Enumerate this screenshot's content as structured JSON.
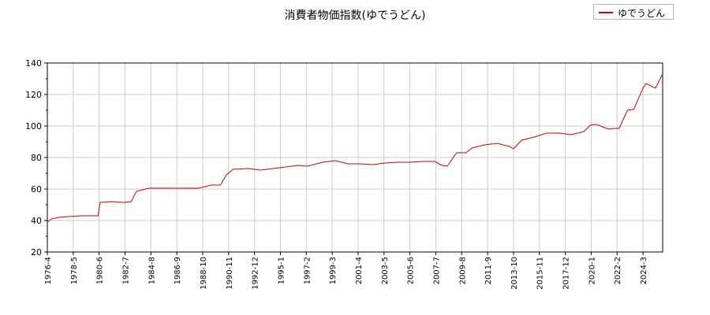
{
  "chart_data": {
    "type": "line",
    "title": "消費者物価指数(ゆでうどん)",
    "xlabel": "",
    "ylabel": "",
    "ylim": [
      20,
      140
    ],
    "yticks": [
      20,
      40,
      60,
      80,
      100,
      120,
      140
    ],
    "xlim": [
      "1976-04",
      "2025-10"
    ],
    "xticks": [
      "1976-4",
      "1978-5",
      "1980-6",
      "1982-7",
      "1984-8",
      "1986-9",
      "1988-10",
      "1990-11",
      "1992-12",
      "1995-1",
      "1997-2",
      "1999-3",
      "2001-4",
      "2003-5",
      "2005-6",
      "2007-7",
      "2009-8",
      "2011-9",
      "2013-10",
      "2015-11",
      "2017-12",
      "2020-1",
      "2022-2",
      "2024-3"
    ],
    "grid": true,
    "legend_position": "top-right",
    "series": [
      {
        "name": "ゆでうどん",
        "color": "#cc0000",
        "x": [
          "1976-04",
          "1976-08",
          "1977-03",
          "1978-01",
          "1979-01",
          "1980-05",
          "1980-07",
          "1981-06",
          "1982-06",
          "1983-01",
          "1983-06",
          "1984-06",
          "1985-06",
          "1986-06",
          "1987-06",
          "1988-06",
          "1989-06",
          "1990-03",
          "1990-09",
          "1991-03",
          "1992-06",
          "1993-06",
          "1994-06",
          "1995-06",
          "1996-06",
          "1997-03",
          "1998-06",
          "1999-06",
          "2000-06",
          "2001-06",
          "2002-06",
          "2003-06",
          "2004-06",
          "2005-06",
          "2006-06",
          "2007-06",
          "2008-01",
          "2008-06",
          "2009-03",
          "2009-12",
          "2010-06",
          "2011-06",
          "2012-06",
          "2013-06",
          "2013-10",
          "2014-06",
          "2015-06",
          "2016-06",
          "2017-06",
          "2018-06",
          "2019-06",
          "2019-12",
          "2020-06",
          "2021-06",
          "2021-12",
          "2022-04",
          "2022-12",
          "2023-06",
          "2024-03",
          "2024-06",
          "2025-03",
          "2025-10"
        ],
        "values": [
          39,
          41,
          42,
          42.5,
          43,
          43,
          51.5,
          52,
          51.5,
          52,
          58.5,
          60.5,
          60.5,
          60.5,
          60.5,
          60.5,
          62.5,
          62.5,
          69,
          72.5,
          73,
          72,
          73,
          74,
          75,
          74.5,
          77,
          78,
          76,
          76,
          75.5,
          76.5,
          77,
          77,
          77.5,
          77.5,
          75,
          74.5,
          83,
          83,
          86,
          88,
          89,
          87,
          85.5,
          91,
          93,
          95.5,
          95.5,
          94.5,
          96.5,
          100.5,
          101,
          98,
          98.5,
          98.5,
          110,
          110.5,
          124,
          127,
          124,
          133
        ]
      }
    ]
  }
}
